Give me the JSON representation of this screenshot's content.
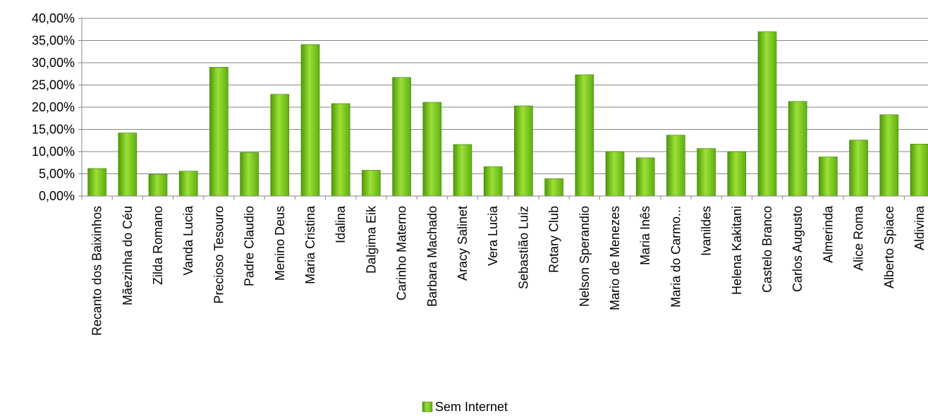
{
  "chart_data": {
    "type": "bar",
    "title": "",
    "xlabel": "",
    "ylabel": "",
    "ylim": [
      0,
      40
    ],
    "y_ticks": [
      "0,00%",
      "5,00%",
      "10,00%",
      "15,00%",
      "20,00%",
      "25,00%",
      "30,00%",
      "35,00%",
      "40,00%"
    ],
    "grid": true,
    "legend_position": "bottom-center",
    "categories": [
      "Recanto dos Baixinhos",
      "Mãezinha do Céu",
      "Zilda Romano",
      "Vanda Lucia",
      "Precioso Tesouro",
      "Padre Claudio",
      "Menino Deus",
      "Maria Cristina",
      "Idalina",
      "Dalgima Eik",
      "Carinho Materno",
      "Barbara Machado",
      "Aracy Salinet",
      "Vera Lucia",
      "Sebastião Luiz",
      "Rotary Club",
      "Nelson Sperandio",
      "Mario de Menezes",
      "Maria Inês",
      "Maria do Carmo...",
      "Ivanildes",
      "Helena Kakitani",
      "Castelo Branco",
      "Carlos Augusto",
      "Almerinda",
      "Alice Roma",
      "Alberto Spiace",
      "Aldivina"
    ],
    "series": [
      {
        "name": "Sem Internet",
        "color": "#7DC71E",
        "values": [
          6.2,
          14.2,
          4.9,
          5.6,
          29.0,
          9.8,
          22.9,
          34.1,
          20.8,
          5.8,
          26.7,
          21.1,
          11.6,
          6.6,
          20.3,
          3.9,
          27.3,
          10.0,
          8.6,
          13.7,
          10.7,
          10.0,
          37.0,
          21.3,
          8.8,
          12.6,
          18.3,
          11.7
        ]
      }
    ]
  }
}
